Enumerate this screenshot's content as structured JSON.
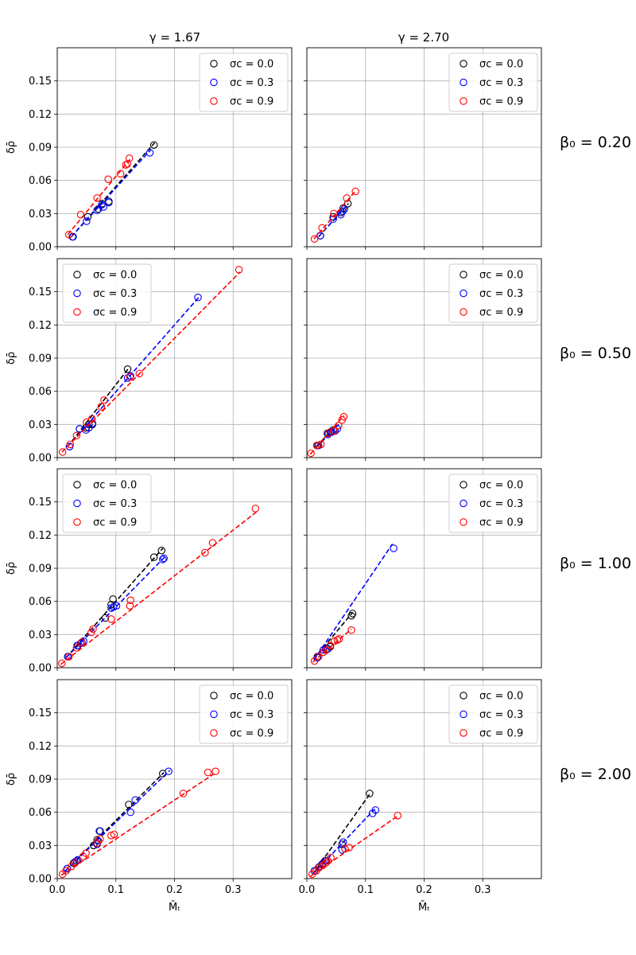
{
  "columns": [
    {
      "label": "γ = 1.67"
    },
    {
      "label": "γ = 2.70"
    }
  ],
  "rows": [
    {
      "label": "β₀ = 0.20"
    },
    {
      "label": "β₀ = 0.50"
    },
    {
      "label": "β₀ = 1.00"
    },
    {
      "label": "β₀ = 2.00"
    }
  ],
  "axes": {
    "xlabel": "M̄ₜ",
    "ylabel": "δρ̄",
    "xlim": [
      0.0,
      0.4
    ],
    "ylim": [
      0.0,
      0.18
    ],
    "xticks": [
      0.0,
      0.1,
      0.2,
      0.3
    ],
    "xtick_labels": [
      "0.0",
      "0.1",
      "0.2",
      "0.3"
    ],
    "yticks": [
      0.0,
      0.03,
      0.06,
      0.09,
      0.12,
      0.15
    ],
    "ytick_labels": [
      "0.00",
      "0.03",
      "0.06",
      "0.09",
      "0.12",
      "0.15"
    ],
    "grid": true
  },
  "legend_entries": [
    {
      "label": "σc = 0.0",
      "color": "#000000"
    },
    {
      "label": "σc = 0.3",
      "color": "#0000ff"
    },
    {
      "label": "σc = 0.9",
      "color": "#ff0000"
    }
  ],
  "chart_data": [
    {
      "type": "scatter",
      "row": 0,
      "col": 0,
      "legend": "top-right",
      "series": [
        {
          "color": "#000000",
          "x": [
            0.026,
            0.052,
            0.07,
            0.077,
            0.088,
            0.165
          ],
          "y": [
            0.009,
            0.027,
            0.034,
            0.039,
            0.041,
            0.092
          ],
          "fit": [
            [
              0.024,
              0.009
            ],
            [
              0.166,
              0.094
            ]
          ]
        },
        {
          "color": "#0000ff",
          "x": [
            0.027,
            0.05,
            0.068,
            0.076,
            0.079,
            0.088,
            0.158
          ],
          "y": [
            0.009,
            0.023,
            0.033,
            0.038,
            0.036,
            0.04,
            0.085
          ],
          "fit": [
            [
              0.024,
              0.009
            ],
            [
              0.16,
              0.088
            ]
          ]
        },
        {
          "color": "#ff0000",
          "x": [
            0.02,
            0.04,
            0.068,
            0.087,
            0.108,
            0.117,
            0.12,
            0.123
          ],
          "y": [
            0.011,
            0.029,
            0.044,
            0.061,
            0.066,
            0.074,
            0.075,
            0.08
          ],
          "fit": [
            [
              0.018,
              0.011
            ],
            [
              0.124,
              0.079
            ]
          ]
        }
      ]
    },
    {
      "type": "scatter",
      "row": 0,
      "col": 1,
      "legend": "top-right",
      "series": [
        {
          "color": "#000000",
          "x": [
            0.023,
            0.045,
            0.058,
            0.062,
            0.07
          ],
          "y": [
            0.01,
            0.027,
            0.031,
            0.035,
            0.039
          ],
          "fit": [
            [
              0.02,
              0.009
            ],
            [
              0.071,
              0.039
            ]
          ]
        },
        {
          "color": "#0000ff",
          "x": [
            0.023,
            0.045,
            0.058,
            0.061,
            0.064
          ],
          "y": [
            0.01,
            0.025,
            0.029,
            0.032,
            0.034
          ],
          "fit": [
            [
              0.02,
              0.009
            ],
            [
              0.066,
              0.036
            ]
          ]
        },
        {
          "color": "#ff0000",
          "x": [
            0.013,
            0.026,
            0.046,
            0.068,
            0.083
          ],
          "y": [
            0.007,
            0.017,
            0.03,
            0.044,
            0.05
          ],
          "fit": [
            [
              0.012,
              0.007
            ],
            [
              0.084,
              0.051
            ]
          ]
        }
      ]
    },
    {
      "type": "scatter",
      "row": 1,
      "col": 0,
      "legend": "top-left",
      "series": [
        {
          "color": "#000000",
          "x": [
            0.021,
            0.038,
            0.049,
            0.054,
            0.06,
            0.12
          ],
          "y": [
            0.01,
            0.026,
            0.027,
            0.03,
            0.03,
            0.08
          ],
          "fit": [
            [
              0.018,
              0.01
            ],
            [
              0.122,
              0.081
            ]
          ]
        },
        {
          "color": "#0000ff",
          "x": [
            0.021,
            0.038,
            0.049,
            0.054,
            0.06,
            0.12,
            0.125,
            0.24
          ],
          "y": [
            0.01,
            0.026,
            0.025,
            0.027,
            0.031,
            0.072,
            0.074,
            0.145
          ],
          "fit": [
            [
              0.018,
              0.01
            ],
            [
              0.243,
              0.146
            ]
          ]
        },
        {
          "color": "#ff0000",
          "x": [
            0.009,
            0.022,
            0.033,
            0.05,
            0.059,
            0.075,
            0.08,
            0.124,
            0.14,
            0.31
          ],
          "y": [
            0.005,
            0.012,
            0.02,
            0.032,
            0.035,
            0.046,
            0.052,
            0.073,
            0.076,
            0.17
          ],
          "fit": [
            [
              0.008,
              0.005
            ],
            [
              0.312,
              0.168
            ]
          ]
        }
      ]
    },
    {
      "type": "scatter",
      "row": 1,
      "col": 1,
      "legend": "top-right",
      "series": [
        {
          "color": "#000000",
          "x": [
            0.018,
            0.035,
            0.04,
            0.045
          ],
          "y": [
            0.011,
            0.022,
            0.023,
            0.025
          ],
          "fit": [
            [
              0.016,
              0.01
            ],
            [
              0.047,
              0.027
            ]
          ]
        },
        {
          "color": "#0000ff",
          "x": [
            0.02,
            0.036,
            0.042,
            0.048,
            0.052
          ],
          "y": [
            0.011,
            0.021,
            0.023,
            0.024,
            0.026
          ],
          "fit": [
            [
              0.016,
              0.009
            ],
            [
              0.054,
              0.03
            ]
          ]
        },
        {
          "color": "#ff0000",
          "x": [
            0.007,
            0.017,
            0.024,
            0.037,
            0.046,
            0.054,
            0.06,
            0.063
          ],
          "y": [
            0.004,
            0.011,
            0.012,
            0.022,
            0.024,
            0.029,
            0.034,
            0.037
          ],
          "fit": [
            [
              0.006,
              0.003
            ],
            [
              0.063,
              0.038
            ]
          ]
        }
      ]
    },
    {
      "type": "scatter",
      "row": 2,
      "col": 0,
      "legend": "top-left",
      "series": [
        {
          "color": "#000000",
          "x": [
            0.018,
            0.035,
            0.042,
            0.082,
            0.092,
            0.095,
            0.165,
            0.178
          ],
          "y": [
            0.01,
            0.02,
            0.023,
            0.045,
            0.057,
            0.062,
            0.1,
            0.106
          ],
          "fit": [
            [
              0.015,
              0.009
            ],
            [
              0.18,
              0.108
            ]
          ]
        },
        {
          "color": "#0000ff",
          "x": [
            0.018,
            0.034,
            0.04,
            0.045,
            0.092,
            0.096,
            0.101,
            0.18,
            0.182
          ],
          "y": [
            0.01,
            0.02,
            0.022,
            0.024,
            0.054,
            0.055,
            0.056,
            0.098,
            0.099
          ],
          "fit": [
            [
              0.015,
              0.009
            ],
            [
              0.183,
              0.1
            ]
          ]
        },
        {
          "color": "#ff0000",
          "x": [
            0.008,
            0.02,
            0.033,
            0.042,
            0.058,
            0.061,
            0.092,
            0.124,
            0.125,
            0.252,
            0.265,
            0.338
          ],
          "y": [
            0.004,
            0.01,
            0.018,
            0.023,
            0.032,
            0.035,
            0.044,
            0.056,
            0.061,
            0.104,
            0.113,
            0.144
          ],
          "fit": [
            [
              0.006,
              0.003
            ],
            [
              0.34,
              0.141
            ]
          ]
        }
      ]
    },
    {
      "type": "scatter",
      "row": 2,
      "col": 1,
      "legend": "top-right",
      "series": [
        {
          "color": "#000000",
          "x": [
            0.018,
            0.028,
            0.034,
            0.04,
            0.076,
            0.078
          ],
          "y": [
            0.01,
            0.014,
            0.017,
            0.019,
            0.047,
            0.049
          ],
          "fit": [
            [
              0.012,
              0.008
            ],
            [
              0.078,
              0.05
            ]
          ]
        },
        {
          "color": "#0000ff",
          "x": [
            0.018,
            0.028,
            0.032,
            0.036,
            0.148
          ],
          "y": [
            0.009,
            0.016,
            0.016,
            0.017,
            0.108
          ],
          "fit": [
            [
              0.012,
              0.007
            ],
            [
              0.146,
              0.112
            ]
          ]
        },
        {
          "color": "#ff0000",
          "x": [
            0.013,
            0.02,
            0.028,
            0.033,
            0.04,
            0.047,
            0.052,
            0.055,
            0.076
          ],
          "y": [
            0.006,
            0.01,
            0.014,
            0.016,
            0.02,
            0.024,
            0.025,
            0.026,
            0.034
          ],
          "fit": [
            [
              0.01,
              0.005
            ],
            [
              0.076,
              0.035
            ]
          ]
        }
      ]
    },
    {
      "type": "scatter",
      "row": 3,
      "col": 0,
      "legend": "top-right",
      "series": [
        {
          "color": "#000000",
          "x": [
            0.017,
            0.028,
            0.033,
            0.062,
            0.068,
            0.072,
            0.122,
            0.18
          ],
          "y": [
            0.009,
            0.014,
            0.016,
            0.03,
            0.035,
            0.043,
            0.067,
            0.095
          ],
          "fit": [
            [
              0.014,
              0.007
            ],
            [
              0.182,
              0.096
            ]
          ]
        },
        {
          "color": "#0000ff",
          "x": [
            0.017,
            0.03,
            0.035,
            0.068,
            0.07,
            0.073,
            0.125,
            0.133,
            0.19
          ],
          "y": [
            0.009,
            0.015,
            0.017,
            0.031,
            0.034,
            0.043,
            0.06,
            0.071,
            0.097
          ],
          "fit": [
            [
              0.014,
              0.007
            ],
            [
              0.192,
              0.098
            ]
          ]
        },
        {
          "color": "#ff0000",
          "x": [
            0.009,
            0.015,
            0.024,
            0.03,
            0.044,
            0.049,
            0.068,
            0.073,
            0.092,
            0.097,
            0.215,
            0.257,
            0.27
          ],
          "y": [
            0.004,
            0.007,
            0.011,
            0.014,
            0.02,
            0.023,
            0.032,
            0.036,
            0.039,
            0.04,
            0.077,
            0.096,
            0.097
          ],
          "fit": [
            [
              0.007,
              0.003
            ],
            [
              0.268,
              0.095
            ]
          ]
        }
      ]
    },
    {
      "type": "scatter",
      "row": 3,
      "col": 1,
      "legend": "top-right",
      "series": [
        {
          "color": "#000000",
          "x": [
            0.013,
            0.02,
            0.026,
            0.031,
            0.06,
            0.107
          ],
          "y": [
            0.007,
            0.01,
            0.013,
            0.016,
            0.031,
            0.077
          ],
          "fit": [
            [
              0.01,
              0.004
            ],
            [
              0.108,
              0.077
            ]
          ]
        },
        {
          "color": "#0000ff",
          "x": [
            0.013,
            0.022,
            0.028,
            0.033,
            0.06,
            0.062,
            0.112,
            0.117
          ],
          "y": [
            0.007,
            0.011,
            0.014,
            0.016,
            0.026,
            0.033,
            0.059,
            0.062
          ],
          "fit": [
            [
              0.01,
              0.004
            ],
            [
              0.116,
              0.063
            ]
          ]
        },
        {
          "color": "#ff0000",
          "x": [
            0.009,
            0.016,
            0.021,
            0.027,
            0.032,
            0.036,
            0.041,
            0.065,
            0.072,
            0.155
          ],
          "y": [
            0.004,
            0.007,
            0.01,
            0.012,
            0.014,
            0.016,
            0.019,
            0.027,
            0.028,
            0.057
          ],
          "fit": [
            [
              0.006,
              0.002
            ],
            [
              0.156,
              0.057
            ]
          ]
        }
      ]
    }
  ]
}
